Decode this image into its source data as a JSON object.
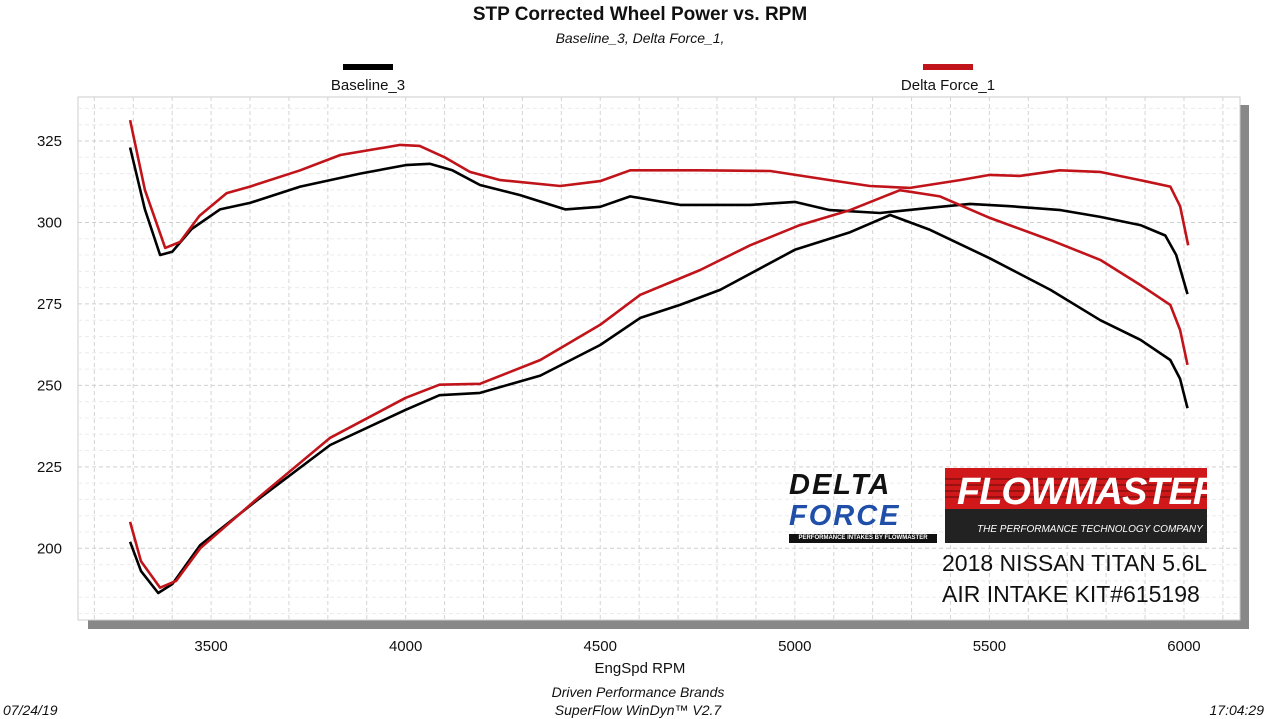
{
  "chart_data": {
    "type": "line",
    "title": "STP Corrected Wheel Power vs. RPM",
    "subtitle": "Baseline_3, Delta Force_1,",
    "xlabel": "EngSpd  RPM",
    "ylabel": "",
    "xlim": [
      3158,
      6144
    ],
    "ylim": [
      178,
      338.5
    ],
    "xticks": [
      3500,
      4000,
      4500,
      5000,
      5500,
      6000
    ],
    "yticks": [
      200,
      225,
      250,
      275,
      300,
      325
    ],
    "grid": true,
    "legend": {
      "placement": "top",
      "entries": [
        {
          "name": "Baseline_3",
          "color": "#000000"
        },
        {
          "name": "Delta Force_1",
          "color": "#c0141a"
        }
      ]
    },
    "series": [
      {
        "name": "Baseline_3",
        "color": "#000000",
        "points": [
          [
            3292,
            323
          ],
          [
            3330,
            304
          ],
          [
            3369,
            290
          ],
          [
            3400,
            291
          ],
          [
            3450,
            298
          ],
          [
            3523,
            304
          ],
          [
            3600,
            306
          ],
          [
            3729,
            311
          ],
          [
            3883,
            315
          ],
          [
            4000,
            317.6
          ],
          [
            4062,
            318
          ],
          [
            4120,
            316
          ],
          [
            4191,
            311.5
          ],
          [
            4294,
            308.4
          ],
          [
            4410,
            304
          ],
          [
            4500,
            304.8
          ],
          [
            4577,
            308
          ],
          [
            4705,
            305.4
          ],
          [
            4885,
            305.4
          ],
          [
            5000,
            306.3
          ],
          [
            5090,
            303.8
          ],
          [
            5219,
            302.9
          ],
          [
            5373,
            304.8
          ],
          [
            5450,
            305.7
          ],
          [
            5553,
            305
          ],
          [
            5683,
            303.8
          ],
          [
            5785,
            301.7
          ],
          [
            5888,
            299.2
          ],
          [
            5952,
            296
          ],
          [
            5980,
            290
          ],
          [
            6009,
            278
          ]
        ]
      },
      {
        "name": "Delta Force_1",
        "color": "#c0141a",
        "points": [
          [
            3292,
            331.4
          ],
          [
            3330,
            310
          ],
          [
            3382,
            292.2
          ],
          [
            3420,
            294
          ],
          [
            3470,
            302
          ],
          [
            3540,
            309
          ],
          [
            3600,
            311
          ],
          [
            3729,
            316
          ],
          [
            3832,
            320.7
          ],
          [
            3986,
            323.8
          ],
          [
            4036,
            323.5
          ],
          [
            4100,
            320
          ],
          [
            4165,
            315.5
          ],
          [
            4243,
            313
          ],
          [
            4397,
            311.2
          ],
          [
            4500,
            312.7
          ],
          [
            4577,
            316
          ],
          [
            4757,
            316
          ],
          [
            4937,
            315.8
          ],
          [
            5090,
            313
          ],
          [
            5193,
            311.2
          ],
          [
            5296,
            310.6
          ],
          [
            5424,
            313
          ],
          [
            5501,
            314.6
          ],
          [
            5578,
            314.3
          ],
          [
            5681,
            316
          ],
          [
            5784,
            315.5
          ],
          [
            5887,
            313
          ],
          [
            5965,
            311
          ],
          [
            5990,
            305
          ],
          [
            6011,
            293
          ]
        ]
      },
      {
        "name": "Baseline_3",
        "color": "#000000",
        "points": [
          [
            3292,
            202
          ],
          [
            3320,
            193
          ],
          [
            3364,
            186.3
          ],
          [
            3400,
            189
          ],
          [
            3472,
            201
          ],
          [
            3626,
            215.5
          ],
          [
            3806,
            231.7
          ],
          [
            4000,
            242.5
          ],
          [
            4087,
            247
          ],
          [
            4191,
            247.7
          ],
          [
            4346,
            253
          ],
          [
            4500,
            262.4
          ],
          [
            4603,
            270.7
          ],
          [
            4705,
            274.7
          ],
          [
            4808,
            279.3
          ],
          [
            5000,
            291.6
          ],
          [
            5142,
            297
          ],
          [
            5245,
            302.3
          ],
          [
            5348,
            297.7
          ],
          [
            5501,
            289
          ],
          [
            5657,
            279.3
          ],
          [
            5785,
            270
          ],
          [
            5888,
            264
          ],
          [
            5965,
            257.8
          ],
          [
            5990,
            252
          ],
          [
            6009,
            243
          ]
        ]
      },
      {
        "name": "Delta Force_1",
        "color": "#c0141a",
        "points": [
          [
            3292,
            208.1
          ],
          [
            3320,
            196
          ],
          [
            3369,
            187.9
          ],
          [
            3410,
            190
          ],
          [
            3472,
            200
          ],
          [
            3626,
            216
          ],
          [
            3806,
            233.9
          ],
          [
            4000,
            246.2
          ],
          [
            4087,
            250.2
          ],
          [
            4191,
            250.5
          ],
          [
            4346,
            257.8
          ],
          [
            4500,
            268.6
          ],
          [
            4603,
            277.8
          ],
          [
            4757,
            285.4
          ],
          [
            4885,
            293
          ],
          [
            5013,
            299.2
          ],
          [
            5142,
            303.8
          ],
          [
            5270,
            309.9
          ],
          [
            5373,
            308
          ],
          [
            5501,
            301.4
          ],
          [
            5657,
            294.6
          ],
          [
            5785,
            288.5
          ],
          [
            5888,
            280.8
          ],
          [
            5965,
            274.7
          ],
          [
            5990,
            267
          ],
          [
            6009,
            256.3
          ]
        ]
      }
    ]
  },
  "logos": {
    "delta_force": "DELTA FORCE",
    "delta_force_tagline": "PERFORMANCE INTAKES BY FLOWMASTER",
    "flowmaster": "FLOWMASTER",
    "flowmaster_tagline": "THE PERFORMANCE TECHNOLOGY COMPANY"
  },
  "annotation": {
    "line1": "2018 NISSAN TITAN 5.6L",
    "line2": "AIR INTAKE KIT#615198"
  },
  "footer": {
    "date": "07/24/19",
    "company": "Driven Performance Brands",
    "software": "SuperFlow WinDyn™  V2.7",
    "time": "17:04:29"
  }
}
